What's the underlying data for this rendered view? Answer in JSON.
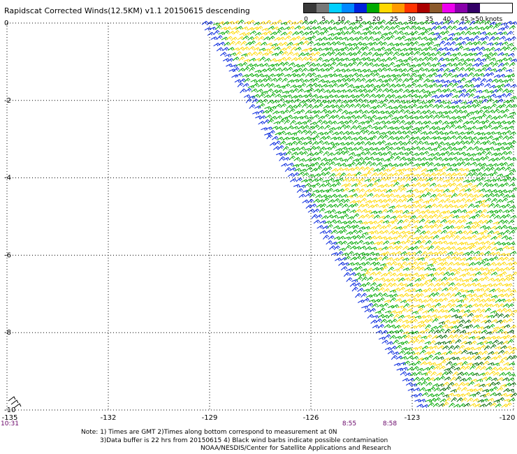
{
  "title": "Rapidscat Corrected Winds(12.5KM) v1.1 20150615 descending",
  "legend": {
    "colors": [
      "#3a3a3a",
      "#777777",
      "#00d0ff",
      "#0088ff",
      "#0022dd",
      "#00aa00",
      "#ffd800",
      "#ff9900",
      "#ff3300",
      "#aa0000",
      "#8b5a2b",
      "#ee00ee",
      "#8800aa",
      "#330066"
    ],
    "labels": [
      "0",
      "5",
      "10",
      "15",
      "20",
      "25",
      "30",
      "35",
      "40",
      "45",
      ">50 knots"
    ],
    "unit": "knots"
  },
  "axes": {
    "lon_ticks": [
      "-135",
      "-132",
      "-129",
      "-126",
      "-123",
      "-120"
    ],
    "lat_ticks": [
      "0",
      "-2",
      "-4",
      "-6",
      "-8",
      "-10"
    ],
    "lon_range": [
      -135,
      -120
    ],
    "lat_range": [
      0,
      -10
    ],
    "grid": true
  },
  "pass_times": [
    "10:31",
    "8:55",
    "8:58"
  ],
  "notes": [
    "Note: 1) Times are GMT 2)Times along bottom correspond to measurement at 0N",
    "3)Data buffer is 22 hrs from 20150615 4) Black wind barbs indicate possible contamination",
    "NOAA/NESDIS/Center for Satellite Applications and Research"
  ],
  "colors": {
    "grid": "#000000",
    "time_label": "#660066",
    "barb_green": "#00aa00",
    "barb_yellow": "#ffd800",
    "barb_blue": "#0022dd",
    "barb_darkgreen": "#006600",
    "barb_orange": "#ff6600"
  }
}
